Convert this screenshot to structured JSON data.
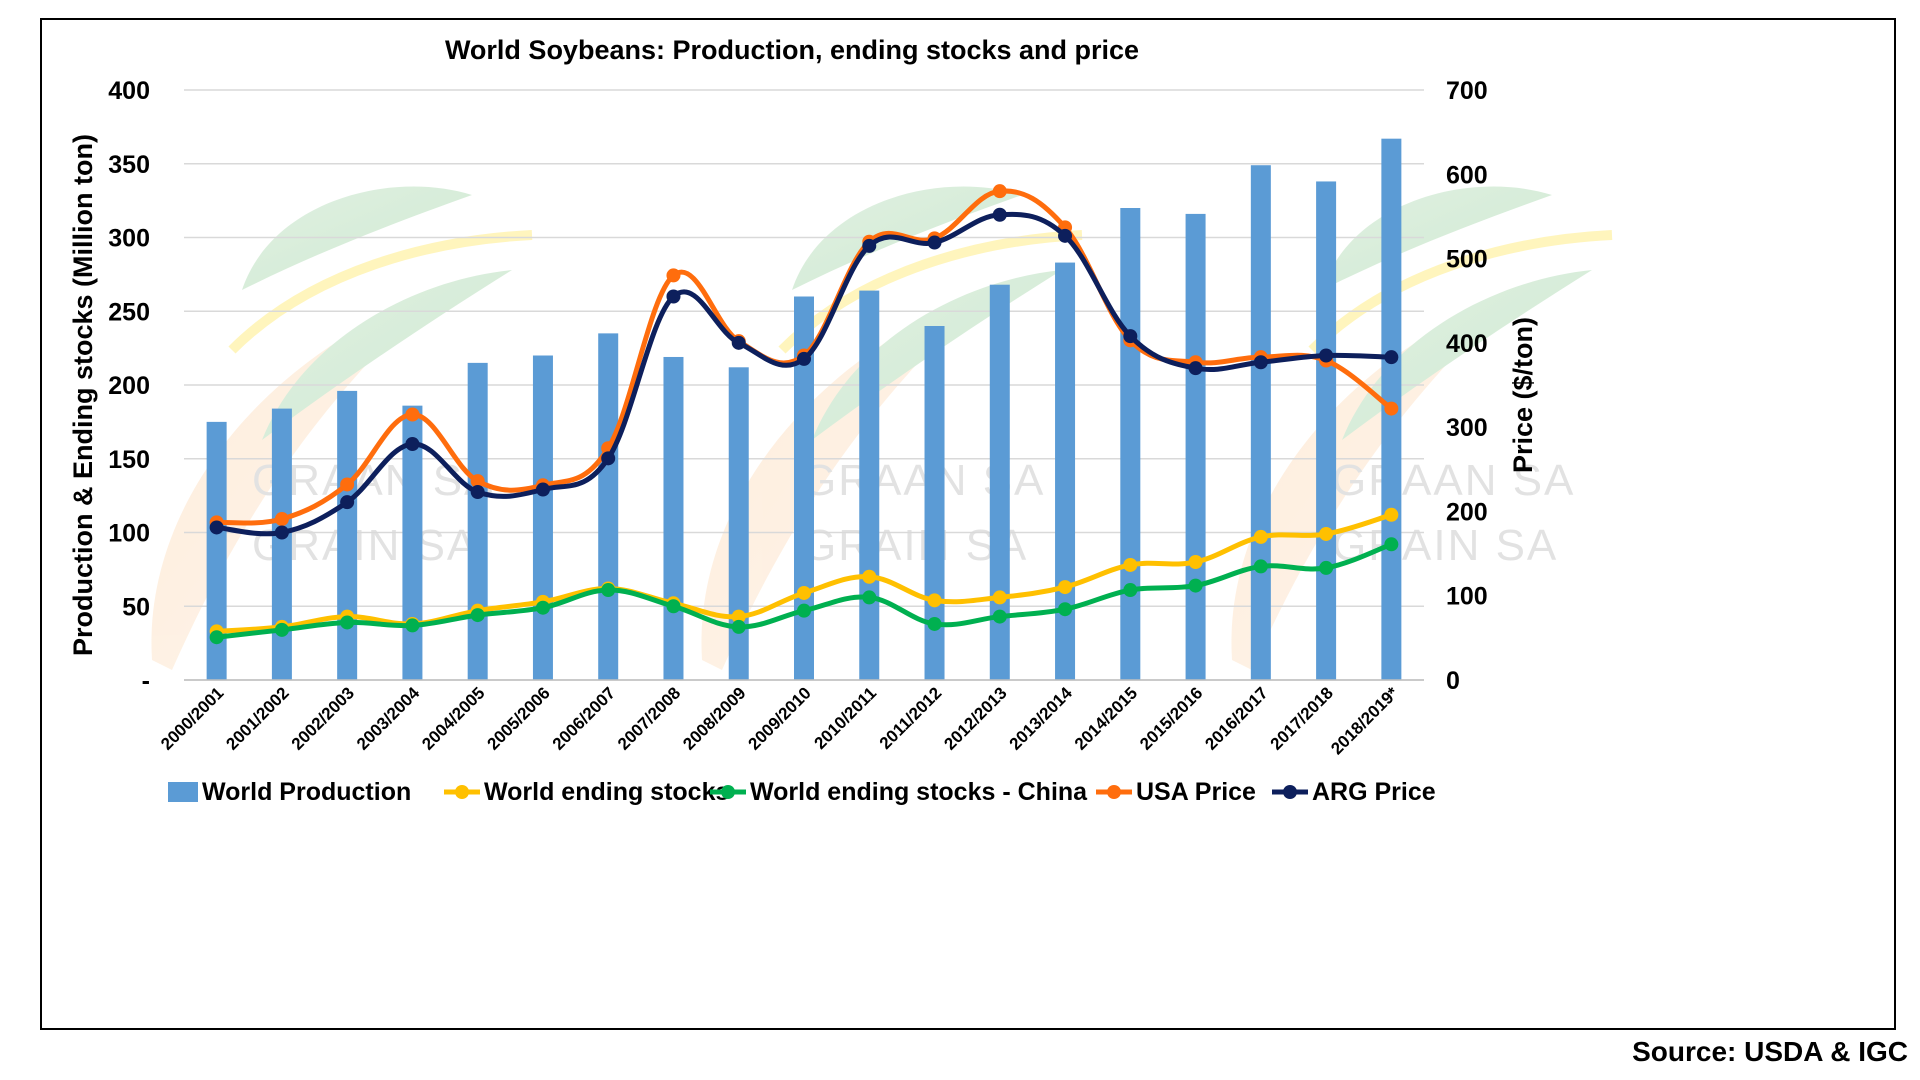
{
  "source": "Source: USDA & IGC",
  "watermark": {
    "lines": [
      "GRAAN SA",
      "GRAIN SA"
    ]
  },
  "chart_data": {
    "type": "bar",
    "title": "World Soybeans: Production, ending stocks and price",
    "ylabel_left": "Production & Ending stocks (Million ton)",
    "ylabel_right": "Price ($/ton)",
    "ylim_left": [
      0,
      400
    ],
    "ylim_right": [
      0,
      700
    ],
    "left_ticks": [
      {
        "v": 0,
        "label": "-"
      },
      {
        "v": 50,
        "label": "50"
      },
      {
        "v": 100,
        "label": "100"
      },
      {
        "v": 150,
        "label": "150"
      },
      {
        "v": 200,
        "label": "200"
      },
      {
        "v": 250,
        "label": "250"
      },
      {
        "v": 300,
        "label": "300"
      },
      {
        "v": 350,
        "label": "350"
      },
      {
        "v": 400,
        "label": "400"
      }
    ],
    "right_ticks": [
      {
        "v": 0,
        "label": "0"
      },
      {
        "v": 100,
        "label": "100"
      },
      {
        "v": 200,
        "label": "200"
      },
      {
        "v": 300,
        "label": "300"
      },
      {
        "v": 400,
        "label": "400"
      },
      {
        "v": 500,
        "label": "500"
      },
      {
        "v": 600,
        "label": "600"
      },
      {
        "v": 700,
        "label": "700"
      }
    ],
    "grid": "horizontal",
    "legend_position": "bottom",
    "categories": [
      "2000/2001",
      "2001/2002",
      "2002/2003",
      "2003/2004",
      "2004/2005",
      "2005/2006",
      "2006/2007",
      "2007/2008",
      "2008/2009",
      "2009/2010",
      "2010/2011",
      "2011/2012",
      "2012/2013",
      "2013/2014",
      "2014/2015",
      "2015/2016",
      "2016/2017",
      "2017/2018",
      "2018/2019*"
    ],
    "series": [
      {
        "name": "World Production",
        "type": "bar",
        "axis": "left",
        "color": "#5b9bd5",
        "values": [
          175,
          184,
          196,
          186,
          215,
          220,
          235,
          219,
          212,
          260,
          264,
          240,
          268,
          283,
          320,
          316,
          349,
          338,
          367
        ]
      },
      {
        "name": "World ending stocks",
        "type": "line",
        "axis": "left",
        "color": "#ffc000",
        "values": [
          33,
          36,
          43,
          38,
          47,
          53,
          62,
          52,
          43,
          59,
          70,
          54,
          56,
          63,
          78,
          80,
          97,
          99,
          112
        ]
      },
      {
        "name": "World ending stocks - China",
        "type": "line",
        "axis": "left",
        "color": "#00b050",
        "values": [
          29,
          34,
          39,
          37,
          44,
          49,
          61,
          50,
          36,
          47,
          56,
          38,
          43,
          48,
          61,
          64,
          77,
          76,
          92
        ]
      },
      {
        "name": "USA Price",
        "type": "line",
        "axis": "right",
        "color": "#ff6d0d",
        "values": [
          187,
          191,
          232,
          315,
          236,
          231,
          275,
          480,
          402,
          385,
          520,
          524,
          580,
          537,
          403,
          377,
          383,
          379,
          322
        ]
      },
      {
        "name": "ARG Price",
        "type": "line",
        "axis": "right",
        "color": "#0d1f5c",
        "values": [
          181,
          175,
          211,
          280,
          223,
          226,
          263,
          455,
          400,
          381,
          515,
          519,
          552,
          527,
          408,
          370,
          377,
          385,
          383
        ]
      }
    ]
  }
}
